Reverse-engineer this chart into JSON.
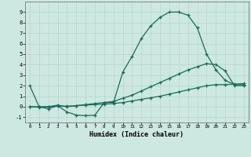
{
  "line1_x": [
    0,
    1,
    2,
    3,
    4,
    5,
    6,
    7,
    8,
    9,
    10,
    11,
    12,
    13,
    14,
    15,
    16,
    17,
    18,
    19,
    20,
    21,
    22,
    23
  ],
  "line1_y": [
    2.0,
    0.0,
    -0.2,
    0.1,
    -0.5,
    -0.8,
    -0.85,
    -0.8,
    0.4,
    0.4,
    3.3,
    4.8,
    6.5,
    7.7,
    8.5,
    9.0,
    9.0,
    8.7,
    7.5,
    5.0,
    3.5,
    2.5,
    2.1,
    2.1
  ],
  "line2_x": [
    0,
    1,
    2,
    3,
    4,
    5,
    6,
    7,
    8,
    9,
    10,
    11,
    12,
    13,
    14,
    15,
    16,
    17,
    18,
    19,
    20,
    21,
    22,
    23
  ],
  "line2_y": [
    0.0,
    -0.05,
    0.0,
    0.15,
    0.0,
    0.1,
    0.2,
    0.3,
    0.4,
    0.5,
    0.8,
    1.1,
    1.5,
    1.9,
    2.3,
    2.7,
    3.1,
    3.5,
    3.8,
    4.1,
    4.0,
    3.4,
    2.0,
    2.0
  ],
  "line3_x": [
    0,
    1,
    2,
    3,
    4,
    5,
    6,
    7,
    8,
    9,
    10,
    11,
    12,
    13,
    14,
    15,
    16,
    17,
    18,
    19,
    20,
    21,
    22,
    23
  ],
  "line3_y": [
    0.0,
    0.0,
    0.0,
    0.05,
    0.05,
    0.1,
    0.15,
    0.2,
    0.25,
    0.3,
    0.4,
    0.55,
    0.7,
    0.85,
    1.0,
    1.2,
    1.4,
    1.6,
    1.8,
    2.0,
    2.1,
    2.1,
    2.15,
    2.2
  ],
  "line_color": "#1a6b5a",
  "bg_color": "#cce8e0",
  "grid_color": "#b8d4cc",
  "xlabel": "Humidex (Indice chaleur)",
  "xlim": [
    -0.5,
    23.5
  ],
  "ylim": [
    -1.5,
    10.0
  ],
  "xticks": [
    0,
    1,
    2,
    3,
    4,
    5,
    6,
    7,
    8,
    9,
    10,
    11,
    12,
    13,
    14,
    15,
    16,
    17,
    18,
    19,
    20,
    21,
    22,
    23
  ],
  "yticks": [
    -1,
    0,
    1,
    2,
    3,
    4,
    5,
    6,
    7,
    8,
    9
  ]
}
